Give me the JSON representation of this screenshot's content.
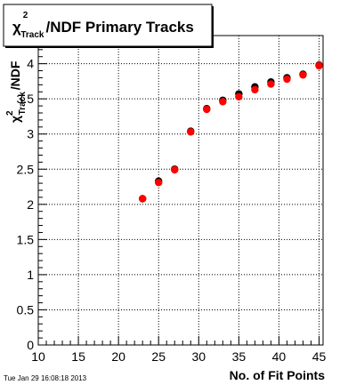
{
  "chart_data": {
    "type": "scatter",
    "title": {
      "symbol": "χ",
      "superscript": "2",
      "subscript": "Track",
      "text": "/NDF Primary Tracks"
    },
    "ylabel": {
      "symbol": "χ",
      "superscript": "2",
      "subscript": "Track",
      "text": "/NDF"
    },
    "xlabel": "No. of Fit Points",
    "xlim": [
      10,
      45.5
    ],
    "ylim": [
      0,
      4.4
    ],
    "x_ticks": [
      10,
      15,
      20,
      25,
      30,
      35,
      40,
      45
    ],
    "y_ticks": [
      0,
      0.5,
      1,
      1.5,
      2,
      2.5,
      3,
      3.5,
      4
    ],
    "grid": true,
    "series": [
      {
        "color": "#000000",
        "marker": "circle",
        "points": [
          [
            23,
            2.08
          ],
          [
            25,
            2.33
          ],
          [
            27,
            2.5
          ],
          [
            29,
            3.04
          ],
          [
            31,
            3.36
          ],
          [
            33,
            3.48
          ],
          [
            35,
            3.57
          ],
          [
            37,
            3.67
          ],
          [
            39,
            3.74
          ],
          [
            41,
            3.8
          ],
          [
            43,
            3.85
          ],
          [
            45,
            3.98
          ]
        ]
      },
      {
        "color": "#ff0000",
        "marker": "circle",
        "points": [
          [
            23,
            2.08
          ],
          [
            25,
            2.31
          ],
          [
            27,
            2.49
          ],
          [
            29,
            3.03
          ],
          [
            31,
            3.35
          ],
          [
            33,
            3.46
          ],
          [
            35,
            3.53
          ],
          [
            37,
            3.63
          ],
          [
            39,
            3.71
          ],
          [
            41,
            3.78
          ],
          [
            43,
            3.84
          ],
          [
            45,
            3.97
          ]
        ]
      }
    ]
  },
  "timestamp": "Tue Jan 29 16:08:18 2013"
}
